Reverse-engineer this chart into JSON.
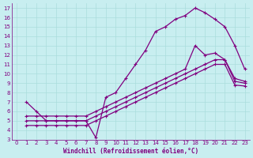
{
  "bg_color": "#c8eef0",
  "line_color": "#800080",
  "grid_color": "#aadddd",
  "xlabel": "Windchill (Refroidissement éolien,°C)",
  "xlim": [
    -0.5,
    23.5
  ],
  "ylim": [
    3,
    17.5
  ],
  "xticks": [
    0,
    1,
    2,
    3,
    4,
    5,
    6,
    7,
    8,
    9,
    10,
    11,
    12,
    13,
    14,
    15,
    16,
    17,
    18,
    19,
    20,
    21,
    22,
    23
  ],
  "yticks": [
    3,
    4,
    5,
    6,
    7,
    8,
    9,
    10,
    11,
    12,
    13,
    14,
    15,
    16,
    17
  ],
  "line1_x": [
    1,
    2,
    3,
    4,
    5,
    6,
    7,
    8,
    9,
    10,
    11,
    12,
    13,
    14,
    15,
    16,
    17,
    18,
    19,
    20,
    21,
    22,
    23
  ],
  "line1_y": [
    7.0,
    6.0,
    5.0,
    5.0,
    5.0,
    5.0,
    5.0,
    3.2,
    7.5,
    8.0,
    9.5,
    11.0,
    12.5,
    14.5,
    15.0,
    15.8,
    16.2,
    17.0,
    16.5,
    15.8,
    15.0,
    13.0,
    10.5
  ],
  "line2_x": [
    1,
    2,
    3,
    4,
    5,
    6,
    7,
    8,
    9,
    10,
    11,
    12,
    13,
    14,
    15,
    16,
    17,
    18,
    19,
    20,
    21,
    22,
    23
  ],
  "line2_y": [
    5.5,
    5.5,
    5.5,
    5.5,
    5.5,
    5.5,
    5.5,
    6.0,
    6.5,
    7.0,
    7.5,
    8.0,
    8.5,
    9.0,
    9.5,
    10.0,
    10.5,
    13.0,
    12.0,
    12.2,
    11.5,
    9.5,
    9.2
  ],
  "line3_x": [
    1,
    2,
    3,
    4,
    5,
    6,
    7,
    8,
    9,
    10,
    11,
    12,
    13,
    14,
    15,
    16,
    17,
    18,
    19,
    20,
    21,
    22,
    23
  ],
  "line3_y": [
    5.0,
    5.0,
    5.0,
    5.0,
    5.0,
    5.0,
    5.0,
    5.5,
    6.0,
    6.5,
    7.0,
    7.5,
    8.0,
    8.5,
    9.0,
    9.5,
    10.0,
    10.5,
    11.0,
    11.5,
    11.5,
    9.2,
    9.0
  ],
  "line4_x": [
    1,
    2,
    3,
    4,
    5,
    6,
    7,
    8,
    9,
    10,
    11,
    12,
    13,
    14,
    15,
    16,
    17,
    18,
    19,
    20,
    21,
    22,
    23
  ],
  "line4_y": [
    4.5,
    4.5,
    4.5,
    4.5,
    4.5,
    4.5,
    4.5,
    5.0,
    5.5,
    6.0,
    6.5,
    7.0,
    7.5,
    8.0,
    8.5,
    9.0,
    9.5,
    10.0,
    10.5,
    11.0,
    11.0,
    8.8,
    8.7
  ]
}
